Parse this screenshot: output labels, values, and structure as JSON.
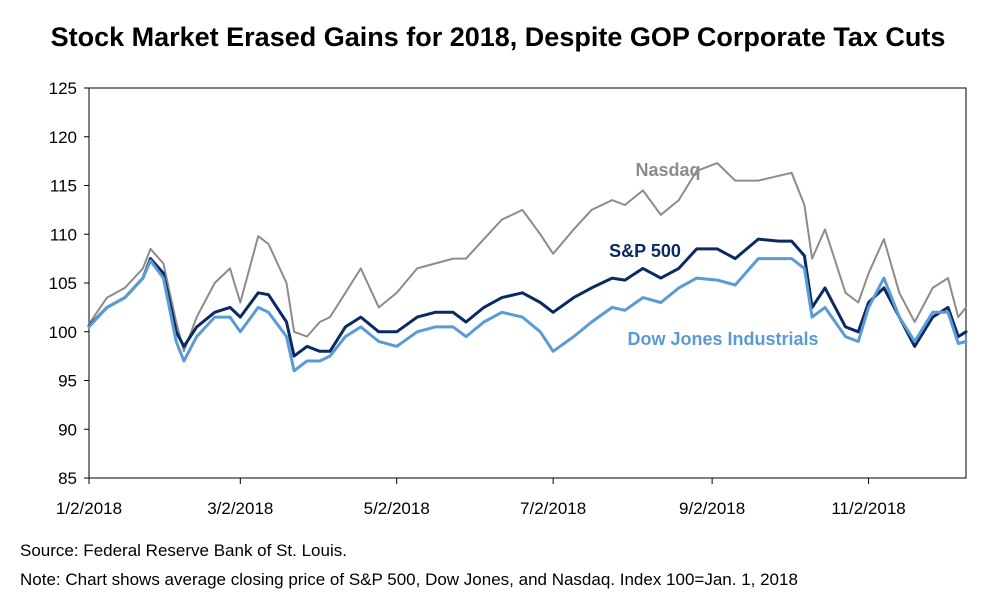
{
  "title": "Stock Market Erased Gains for 2018, Despite GOP Corporate Tax Cuts",
  "footer": {
    "source": "Source:  Federal Reserve Bank of St. Louis.",
    "note": "Note:  Chart shows average closing price of S&P 500, Dow Jones, and Nasdaq. Index 100=Jan. 1, 2018"
  },
  "chart_data": {
    "type": "line",
    "ylim": [
      85,
      125
    ],
    "y_ticks": [
      "85",
      "90",
      "95",
      "100",
      "105",
      "110",
      "115",
      "120",
      "125"
    ],
    "x_ticks": [
      "1/2/2018",
      "3/2/2018",
      "5/2/2018",
      "7/2/2018",
      "9/2/2018",
      "11/2/2018"
    ],
    "grid": false,
    "x": [
      "2018-01-02",
      "2018-01-09",
      "2018-01-16",
      "2018-01-23",
      "2018-01-26",
      "2018-01-31",
      "2018-02-05",
      "2018-02-08",
      "2018-02-13",
      "2018-02-20",
      "2018-02-26",
      "2018-03-02",
      "2018-03-09",
      "2018-03-13",
      "2018-03-20",
      "2018-03-23",
      "2018-03-28",
      "2018-04-02",
      "2018-04-06",
      "2018-04-12",
      "2018-04-18",
      "2018-04-25",
      "2018-05-02",
      "2018-05-10",
      "2018-05-17",
      "2018-05-24",
      "2018-05-29",
      "2018-06-05",
      "2018-06-12",
      "2018-06-20",
      "2018-06-27",
      "2018-07-02",
      "2018-07-10",
      "2018-07-17",
      "2018-07-25",
      "2018-07-30",
      "2018-08-06",
      "2018-08-13",
      "2018-08-20",
      "2018-08-27",
      "2018-09-04",
      "2018-09-11",
      "2018-09-20",
      "2018-09-28",
      "2018-10-03",
      "2018-10-08",
      "2018-10-11",
      "2018-10-16",
      "2018-10-24",
      "2018-10-29",
      "2018-11-02",
      "2018-11-08",
      "2018-11-14",
      "2018-11-20",
      "2018-11-27",
      "2018-12-03",
      "2018-12-07",
      "2018-12-10"
    ],
    "series": [
      {
        "name": "Nasdaq",
        "color": "#8c8c8c",
        "width": 2,
        "values": [
          100.8,
          103.5,
          104.5,
          106.5,
          108.5,
          107.0,
          101.0,
          98.0,
          101.5,
          105.0,
          106.5,
          103.0,
          109.8,
          109.0,
          105.0,
          100.0,
          99.5,
          101.0,
          101.5,
          104.0,
          106.5,
          102.5,
          104.0,
          106.5,
          107.0,
          107.5,
          107.5,
          109.5,
          111.5,
          112.5,
          110.0,
          108.0,
          110.5,
          112.5,
          113.5,
          113.0,
          114.5,
          112.0,
          113.5,
          116.5,
          117.3,
          115.5,
          115.5,
          116.0,
          116.3,
          113.0,
          107.5,
          110.5,
          104.0,
          103.0,
          106.0,
          109.5,
          104.0,
          101.0,
          104.5,
          105.5,
          101.5,
          102.5
        ]
      },
      {
        "name": "S&P 500",
        "color": "#0b2a63",
        "width": 3,
        "values": [
          100.6,
          102.5,
          103.5,
          105.5,
          107.5,
          106.0,
          100.0,
          98.5,
          100.5,
          102.0,
          102.5,
          101.5,
          104.0,
          103.8,
          101.0,
          97.5,
          98.5,
          98.0,
          98.0,
          100.5,
          101.5,
          100.0,
          100.0,
          101.5,
          102.0,
          102.0,
          101.0,
          102.5,
          103.5,
          104.0,
          103.0,
          102.0,
          103.5,
          104.5,
          105.5,
          105.3,
          106.5,
          105.5,
          106.5,
          108.5,
          108.5,
          107.5,
          109.5,
          109.3,
          109.3,
          107.8,
          102.5,
          104.5,
          100.5,
          100.0,
          103.0,
          104.5,
          101.5,
          98.5,
          101.5,
          102.5,
          99.5,
          100.0
        ]
      },
      {
        "name": "Dow Jones Industrials",
        "color": "#5b9bd5",
        "width": 3,
        "values": [
          100.5,
          102.5,
          103.5,
          105.5,
          107.3,
          105.5,
          99.0,
          97.0,
          99.5,
          101.5,
          101.5,
          100.0,
          102.5,
          102.0,
          99.5,
          96.0,
          97.0,
          97.0,
          97.5,
          99.5,
          100.5,
          99.0,
          98.5,
          100.0,
          100.5,
          100.5,
          99.5,
          101.0,
          102.0,
          101.5,
          100.0,
          98.0,
          99.5,
          101.0,
          102.5,
          102.2,
          103.5,
          103.0,
          104.5,
          105.5,
          105.3,
          104.8,
          107.5,
          107.5,
          107.5,
          106.5,
          101.5,
          102.5,
          99.5,
          99.0,
          102.5,
          105.5,
          101.5,
          99.0,
          102.0,
          102.0,
          98.8,
          99.0
        ]
      }
    ],
    "annotations": [
      {
        "text": "Nasdaq",
        "series": "Nasdaq"
      },
      {
        "text": "S&P 500",
        "series": "S&P 500"
      },
      {
        "text": "Dow Jones Industrials",
        "series": "Dow Jones Industrials"
      }
    ]
  }
}
